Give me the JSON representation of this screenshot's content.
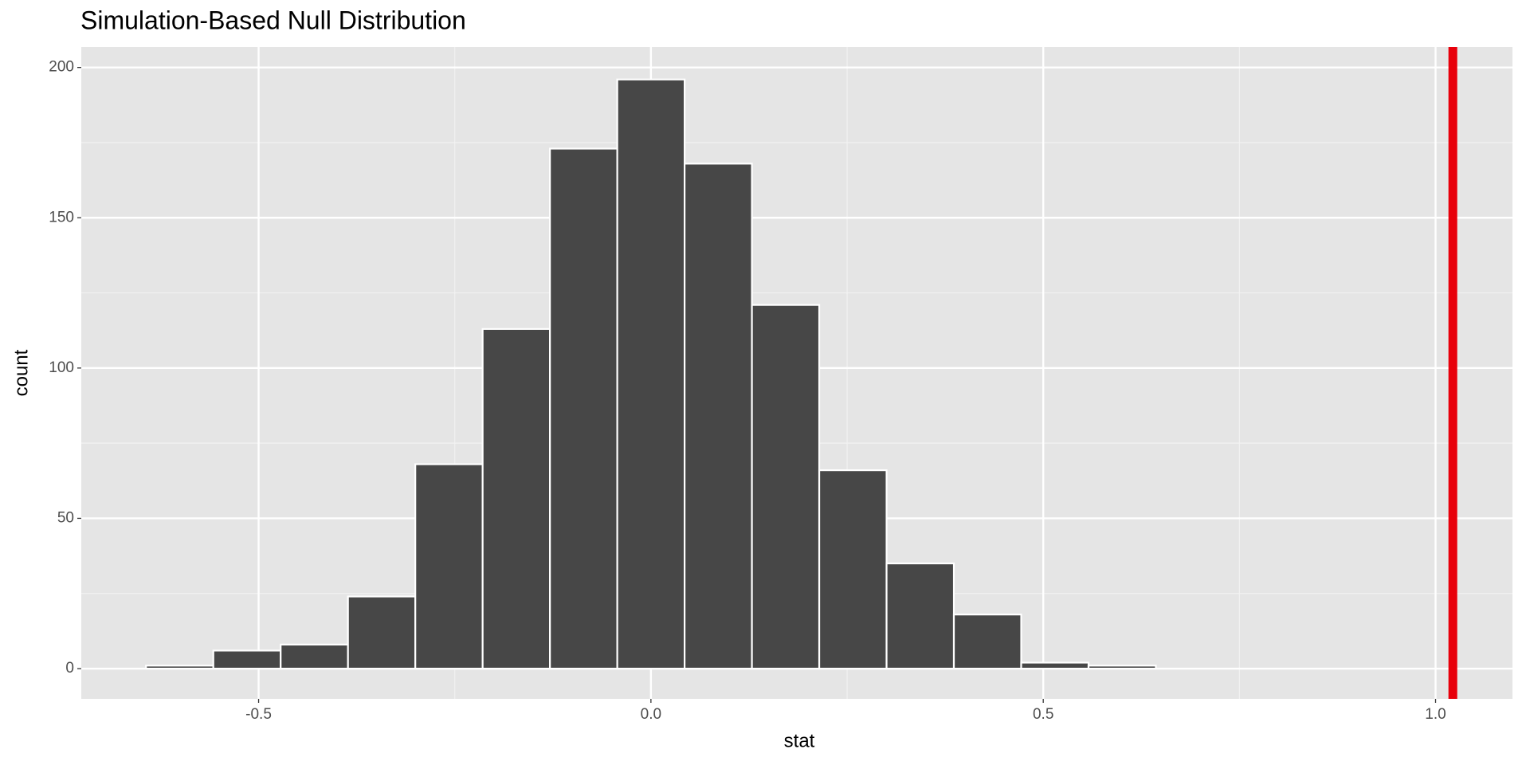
{
  "chart_data": {
    "type": "histogram",
    "title": "Simulation-Based Null Distribution",
    "x_label": "stat",
    "y_label": "count",
    "bins": [
      -0.6435,
      -0.5577,
      -0.4719,
      -0.3861,
      -0.3003,
      -0.2145,
      -0.1287,
      -0.0429,
      0.0429,
      0.1287,
      0.2145,
      0.3003,
      0.3861,
      0.4719,
      0.5577,
      0.6435
    ],
    "values": [
      1,
      6,
      8,
      24,
      68,
      113,
      173,
      196,
      168,
      121,
      66,
      35,
      18,
      2,
      1
    ],
    "color": "#474747",
    "edge_color": "#ffffff",
    "reference_line": 1.022,
    "reference_line_color": "#e8000b",
    "xlim": [
      -0.726,
      1.098
    ],
    "ylim": [
      -10.06,
      206.8
    ],
    "xticks": [
      {
        "value": -0.5,
        "label": "-0.5"
      },
      {
        "value": 0,
        "label": "0.0"
      },
      {
        "value": 0.5,
        "label": "0.5"
      },
      {
        "value": 1,
        "label": "1.0"
      }
    ],
    "yticks": [
      0,
      50,
      100,
      150,
      200
    ],
    "grid": true
  }
}
